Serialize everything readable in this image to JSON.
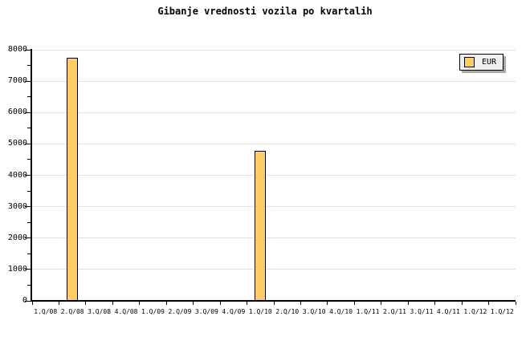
{
  "title": "Gibanje vrednosti vozila po kvartalih",
  "legend": {
    "label": "EUR",
    "box_bg": "#F0F0F0",
    "box_border": "#000000",
    "shadow_color": "#AAAAAA",
    "swatch_color": "#FFCC66"
  },
  "colors": {
    "background": "#FFFFFF",
    "bar_fill": "#FFCC66",
    "bar_border": "#000000",
    "gridline": "#E0E0E0",
    "axis": "#000000",
    "text": "#000000"
  },
  "chart_data": {
    "type": "bar",
    "title": "Gibanje vrednosti vozila po kvartalih",
    "categories": [
      "1.Q/08",
      "2.Q/08",
      "3.Q/08",
      "4.Q/08",
      "1.Q/09",
      "2.Q/09",
      "3.Q/09",
      "4.Q/09",
      "1.Q/10",
      "2.Q/10",
      "3.Q/10",
      "4.Q/10",
      "1.Q/11",
      "2.Q/11",
      "3.Q/11",
      "4.Q/11",
      "1.Q/12",
      "1.Q/12"
    ],
    "series": [
      {
        "name": "EUR",
        "values": [
          0,
          7750,
          0,
          0,
          0,
          0,
          0,
          0,
          4770,
          0,
          0,
          0,
          0,
          0,
          0,
          0,
          0,
          0
        ]
      }
    ],
    "xlabel": "",
    "ylabel": "",
    "ylim": [
      0,
      8000
    ],
    "ytick_major_step": 1000,
    "ytick_minor_step": 500,
    "ytick_labels": [
      "0",
      "1000",
      "2000",
      "3000",
      "4000",
      "5000",
      "6000",
      "7000",
      "8000"
    ],
    "grid": "horizontal-major",
    "legend_position": "top-right"
  }
}
